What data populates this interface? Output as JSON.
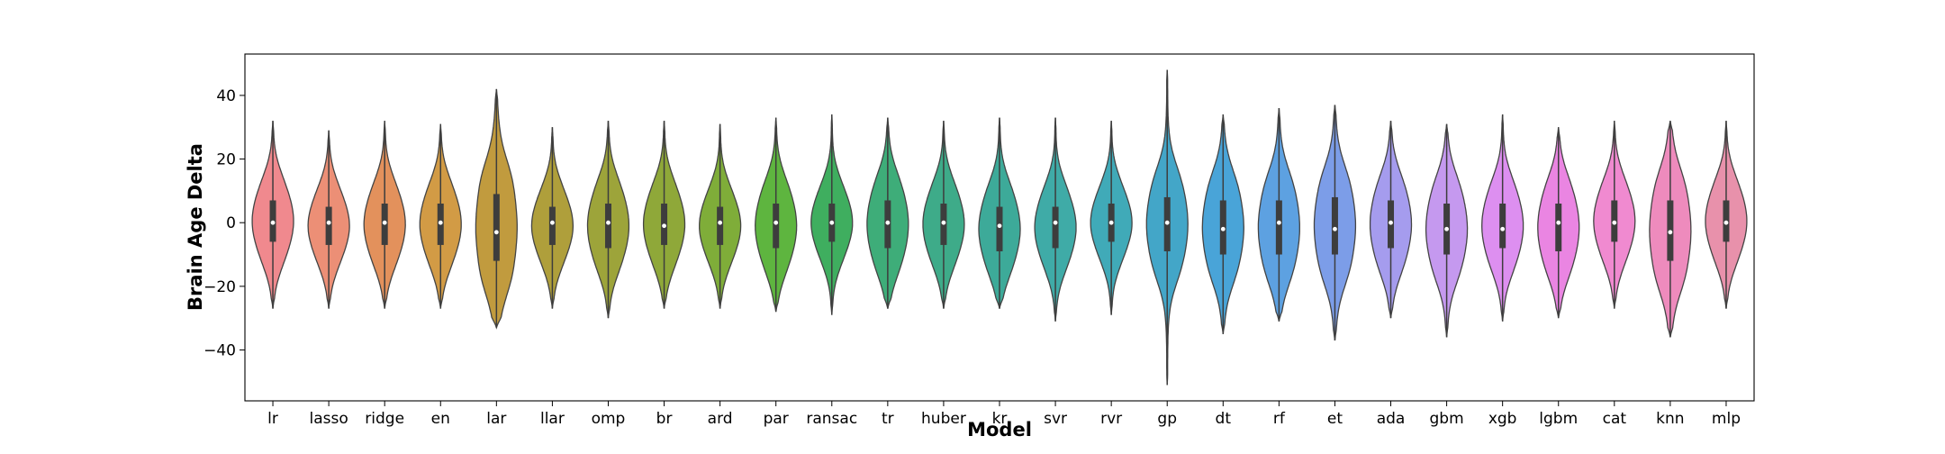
{
  "chart_data": {
    "type": "violin",
    "xlabel": "Model",
    "ylabel": "Brain Age Delta",
    "ylim": [
      -56,
      53
    ],
    "yticks": [
      -40,
      -20,
      0,
      20,
      40
    ],
    "ytick_labels": [
      "−40",
      "−20",
      "0",
      "20",
      "40"
    ],
    "grid": false,
    "legend": "none",
    "categories": [
      "lr",
      "lasso",
      "ridge",
      "en",
      "lar",
      "llar",
      "omp",
      "br",
      "ard",
      "par",
      "ransac",
      "tr",
      "huber",
      "kr",
      "svr",
      "rvr",
      "gp",
      "dt",
      "rf",
      "et",
      "ada",
      "gbm",
      "xgb",
      "lgbm",
      "cat",
      "knn",
      "mlp"
    ],
    "colors": [
      "#f0898e",
      "#ec8f76",
      "#e3915c",
      "#d29b45",
      "#c19b3e",
      "#af9f3b",
      "#9da43a",
      "#8fa839",
      "#7fad39",
      "#5eb53f",
      "#3fae5f",
      "#3ead79",
      "#3eab89",
      "#3daa99",
      "#3faba7",
      "#40aab8",
      "#43a6c8",
      "#49a4d8",
      "#5da1e1",
      "#7c9de8",
      "#a59cee",
      "#c599ef",
      "#dd8ff0",
      "#ea85e2",
      "#f08ad0",
      "#ee8bbd",
      "#e891ab"
    ],
    "series": [
      {
        "min": -27,
        "q1": -6,
        "median": 0,
        "q3": 7,
        "max": 32
      },
      {
        "min": -27,
        "q1": -7,
        "median": 0,
        "q3": 5,
        "max": 29
      },
      {
        "min": -27,
        "q1": -7,
        "median": 0,
        "q3": 6,
        "max": 32
      },
      {
        "min": -27,
        "q1": -7,
        "median": 0,
        "q3": 6,
        "max": 31
      },
      {
        "min": -33,
        "q1": -12,
        "median": -3,
        "q3": 9,
        "max": 42
      },
      {
        "min": -27,
        "q1": -7,
        "median": 0,
        "q3": 5,
        "max": 30
      },
      {
        "min": -30,
        "q1": -8,
        "median": 0,
        "q3": 6,
        "max": 32
      },
      {
        "min": -27,
        "q1": -7,
        "median": -1,
        "q3": 6,
        "max": 32
      },
      {
        "min": -27,
        "q1": -7,
        "median": 0,
        "q3": 5,
        "max": 31
      },
      {
        "min": -28,
        "q1": -8,
        "median": 0,
        "q3": 6,
        "max": 33
      },
      {
        "min": -29,
        "q1": -6,
        "median": 0,
        "q3": 6,
        "max": 34
      },
      {
        "min": -27,
        "q1": -8,
        "median": 0,
        "q3": 7,
        "max": 33
      },
      {
        "min": -27,
        "q1": -7,
        "median": 0,
        "q3": 6,
        "max": 32
      },
      {
        "min": -27,
        "q1": -9,
        "median": -1,
        "q3": 5,
        "max": 33
      },
      {
        "min": -31,
        "q1": -8,
        "median": 0,
        "q3": 5,
        "max": 33
      },
      {
        "min": -29,
        "q1": -6,
        "median": 0,
        "q3": 6,
        "max": 32
      },
      {
        "min": -51,
        "q1": -9,
        "median": 0,
        "q3": 8,
        "max": 48
      },
      {
        "min": -35,
        "q1": -10,
        "median": -2,
        "q3": 7,
        "max": 34
      },
      {
        "min": -31,
        "q1": -10,
        "median": 0,
        "q3": 7,
        "max": 36
      },
      {
        "min": -37,
        "q1": -10,
        "median": -2,
        "q3": 8,
        "max": 37
      },
      {
        "min": -30,
        "q1": -8,
        "median": 0,
        "q3": 7,
        "max": 32
      },
      {
        "min": -36,
        "q1": -10,
        "median": -2,
        "q3": 6,
        "max": 31
      },
      {
        "min": -31,
        "q1": -8,
        "median": -2,
        "q3": 6,
        "max": 34
      },
      {
        "min": -30,
        "q1": -9,
        "median": 0,
        "q3": 6,
        "max": 30
      },
      {
        "min": -27,
        "q1": -6,
        "median": 0,
        "q3": 7,
        "max": 32
      },
      {
        "min": -36,
        "q1": -12,
        "median": -3,
        "q3": 7,
        "max": 32
      },
      {
        "min": -27,
        "q1": -6,
        "median": 0,
        "q3": 7,
        "max": 32
      }
    ]
  }
}
